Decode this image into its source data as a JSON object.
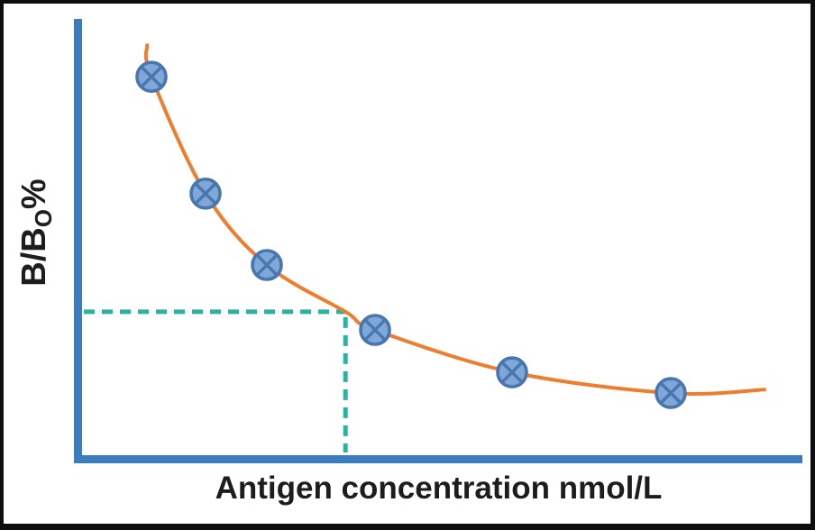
{
  "figure": {
    "xlabel": "Antigen concentration nmol/L",
    "ylabel_main": "B/B",
    "ylabel_sub": "O",
    "ylabel_suffix": "%"
  },
  "colors": {
    "axis_blue": "#3b7cbf",
    "curve_orange": "#ee7d2d",
    "marker_fill": "#7fa8d8",
    "marker_stroke": "#4876ae",
    "guide_teal": "#2bb3a2",
    "text_black": "#1d1d1d",
    "border_black": "#0d0d0d",
    "background": "#ffffff"
  },
  "chart_data": {
    "type": "scatter",
    "title": "",
    "xlabel": "Antigen concentration nmol/L",
    "ylabel": "B/BO%",
    "x_axis": {
      "min": 0,
      "max": 10,
      "tick_labels": "none (unlabeled axis)"
    },
    "y_axis": {
      "min": 0,
      "max": 100,
      "tick_labels": "none (unlabeled axis)"
    },
    "grid": false,
    "legend": "none",
    "series": [
      {
        "name": "standard-points",
        "type": "scatter",
        "marker": "circled-x",
        "x": [
          1.0,
          1.75,
          2.6,
          4.1,
          6.0,
          8.2
        ],
        "y": [
          88.5,
          61.5,
          45.0,
          30.0,
          20.2,
          15.4
        ]
      },
      {
        "name": "fitted-calibration-curve",
        "type": "line",
        "points": [
          [
            0.94,
            95.8
          ],
          [
            1.0,
            88.5
          ],
          [
            1.75,
            61.5
          ],
          [
            2.6,
            45.0
          ],
          [
            3.69,
            34.2
          ],
          [
            4.1,
            30.0
          ],
          [
            6.0,
            20.2
          ],
          [
            8.2,
            15.4
          ],
          [
            9.5,
            16.2
          ]
        ]
      }
    ],
    "guide": {
      "x": 3.69,
      "y": 34.2,
      "style": "dashed",
      "meaning": "reading of unknown sample from curve to axes"
    }
  }
}
